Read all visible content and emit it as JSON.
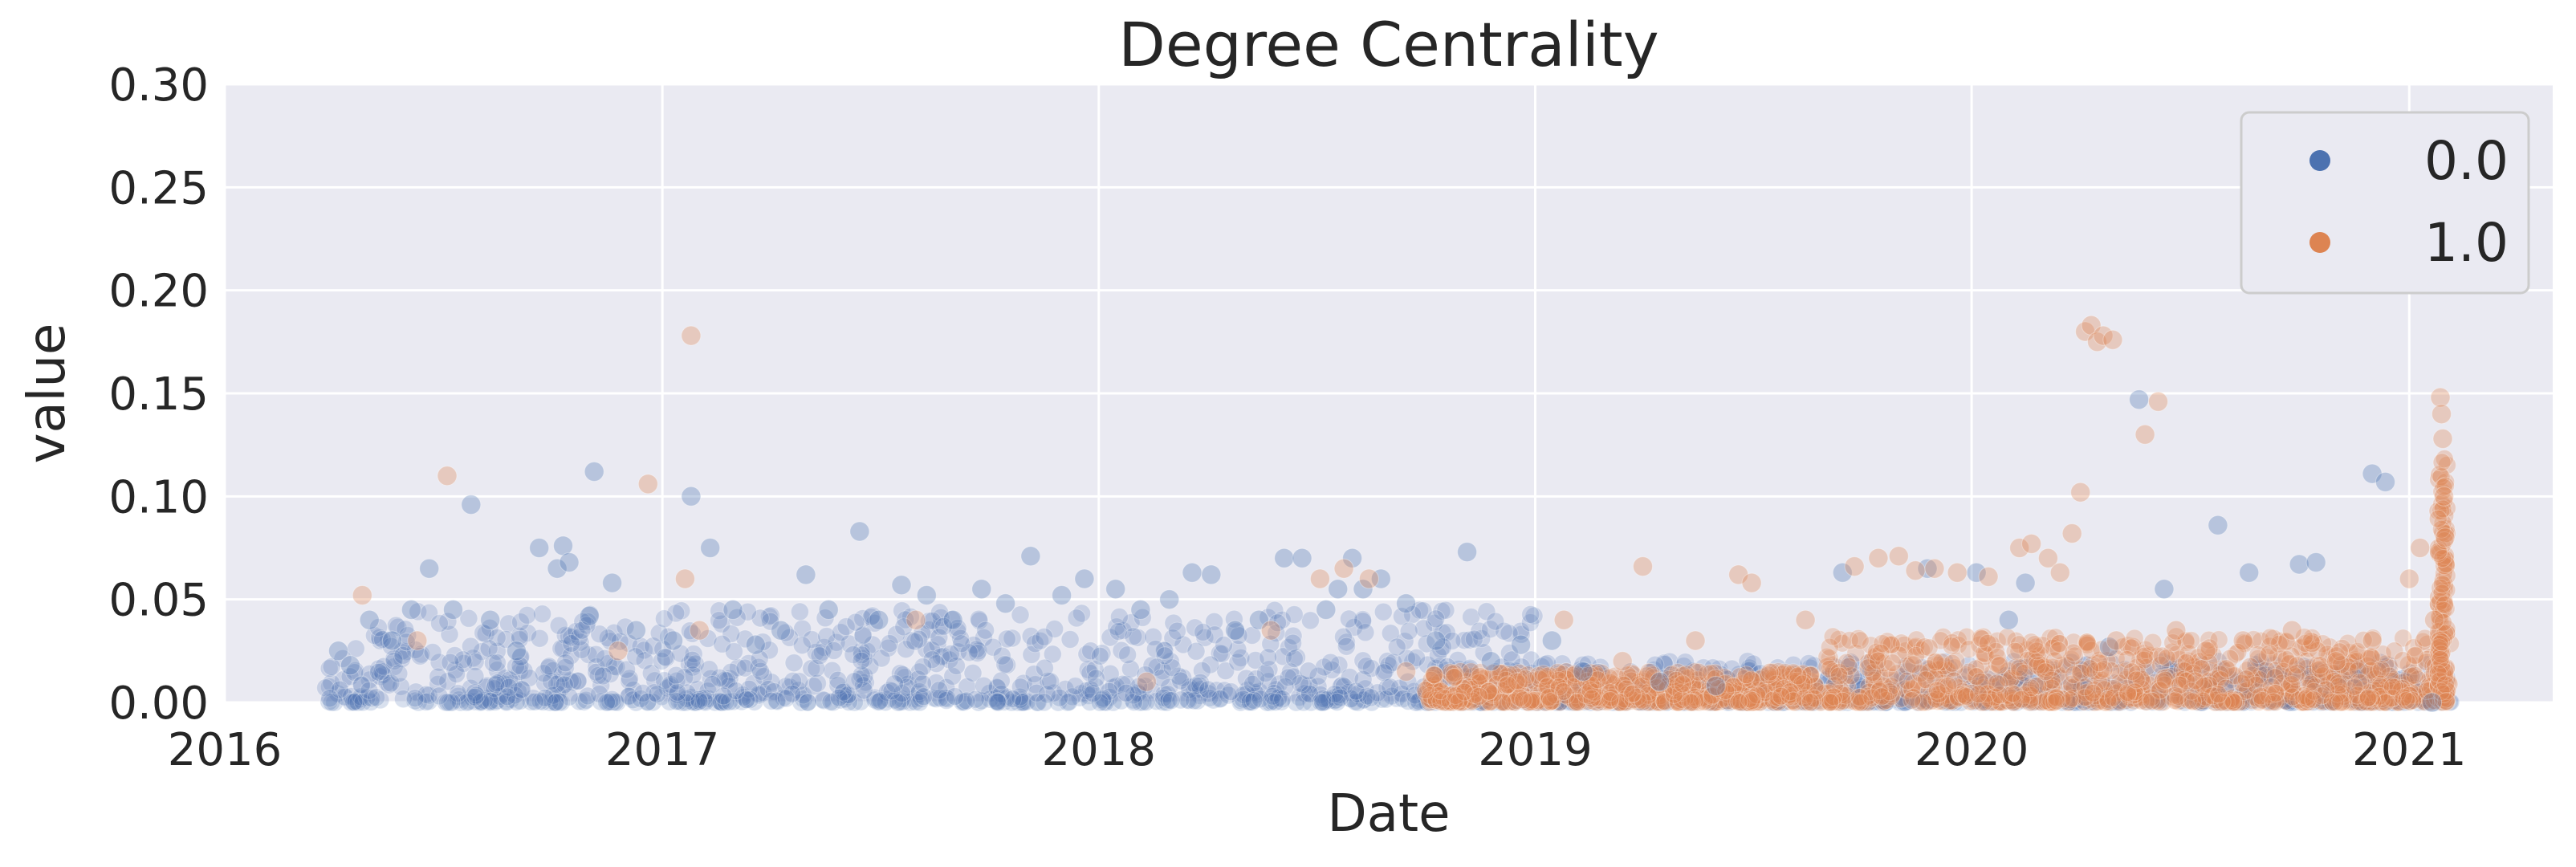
{
  "chart_data": {
    "type": "scatter",
    "title": "Degree Centrality",
    "xlabel": "Date",
    "ylabel": "value",
    "x_type": "date",
    "xlim": [
      "2016-01-01",
      "2021-05-01"
    ],
    "ylim": [
      0,
      0.3
    ],
    "x_ticks": [
      "2016",
      "2017",
      "2018",
      "2019",
      "2020",
      "2021"
    ],
    "y_ticks": [
      "0.00",
      "0.05",
      "0.10",
      "0.15",
      "0.20",
      "0.25",
      "0.30"
    ],
    "grid": true,
    "legend_position": "top-right",
    "series": [
      {
        "name": "0.0",
        "color": "#4c72b0",
        "points": [
          [
            "2016-04-05",
            0.025
          ],
          [
            "2016-04-15",
            0.018
          ],
          [
            "2016-05-01",
            0.04
          ],
          [
            "2016-05-20",
            0.03
          ],
          [
            "2016-06-05",
            0.045
          ],
          [
            "2016-06-20",
            0.065
          ],
          [
            "2016-07-10",
            0.045
          ],
          [
            "2016-07-25",
            0.096
          ],
          [
            "2016-08-10",
            0.04
          ],
          [
            "2016-09-01",
            0.025
          ],
          [
            "2016-09-20",
            0.075
          ],
          [
            "2016-10-05",
            0.065
          ],
          [
            "2016-10-10",
            0.076
          ],
          [
            "2016-10-15",
            0.068
          ],
          [
            "2016-11-01",
            0.042
          ],
          [
            "2016-11-05",
            0.112
          ],
          [
            "2016-11-20",
            0.058
          ],
          [
            "2016-12-10",
            0.035
          ],
          [
            "2017-01-10",
            0.03
          ],
          [
            "2017-01-25",
            0.1
          ],
          [
            "2017-02-10",
            0.075
          ],
          [
            "2017-03-01",
            0.045
          ],
          [
            "2017-03-20",
            0.028
          ],
          [
            "2017-04-10",
            0.035
          ],
          [
            "2017-05-01",
            0.062
          ],
          [
            "2017-05-20",
            0.045
          ],
          [
            "2017-06-15",
            0.083
          ],
          [
            "2017-07-01",
            0.04
          ],
          [
            "2017-07-20",
            0.057
          ],
          [
            "2017-08-10",
            0.052
          ],
          [
            "2017-09-01",
            0.04
          ],
          [
            "2017-09-25",
            0.055
          ],
          [
            "2017-10-15",
            0.048
          ],
          [
            "2017-11-05",
            0.071
          ],
          [
            "2017-12-01",
            0.052
          ],
          [
            "2017-12-20",
            0.06
          ],
          [
            "2018-01-15",
            0.055
          ],
          [
            "2018-02-05",
            0.045
          ],
          [
            "2018-03-01",
            0.05
          ],
          [
            "2018-03-20",
            0.063
          ],
          [
            "2018-04-05",
            0.062
          ],
          [
            "2018-04-25",
            0.035
          ],
          [
            "2018-05-15",
            0.04
          ],
          [
            "2018-06-05",
            0.07
          ],
          [
            "2018-06-20",
            0.07
          ],
          [
            "2018-07-10",
            0.045
          ],
          [
            "2018-07-20",
            0.055
          ],
          [
            "2018-08-01",
            0.07
          ],
          [
            "2018-08-10",
            0.055
          ],
          [
            "2018-08-25",
            0.06
          ],
          [
            "2018-09-15",
            0.048
          ],
          [
            "2018-10-10",
            0.03
          ],
          [
            "2018-11-05",
            0.073
          ],
          [
            "2018-11-25",
            0.02
          ],
          [
            "2018-12-20",
            0.028
          ],
          [
            "2019-01-15",
            0.03
          ],
          [
            "2019-02-10",
            0.015
          ],
          [
            "2019-04-15",
            0.01
          ],
          [
            "2019-06-01",
            0.008
          ],
          [
            "2019-09-15",
            0.063
          ],
          [
            "2019-11-25",
            0.065
          ],
          [
            "2020-01-05",
            0.063
          ],
          [
            "2020-02-01",
            0.04
          ],
          [
            "2020-02-15",
            0.058
          ],
          [
            "2020-04-25",
            0.027
          ],
          [
            "2020-05-20",
            0.147
          ],
          [
            "2020-06-10",
            0.055
          ],
          [
            "2020-07-25",
            0.086
          ],
          [
            "2020-08-20",
            0.063
          ],
          [
            "2020-10-01",
            0.067
          ],
          [
            "2020-10-15",
            0.068
          ],
          [
            "2020-12-01",
            0.111
          ],
          [
            "2020-12-12",
            0.107
          ],
          [
            "2021-01-20",
            0.0
          ]
        ]
      },
      {
        "name": "1.0",
        "color": "#dd8452",
        "points": [
          [
            "2016-04-25",
            0.052
          ],
          [
            "2016-06-10",
            0.03
          ],
          [
            "2016-07-05",
            0.11
          ],
          [
            "2016-11-25",
            0.025
          ],
          [
            "2016-12-20",
            0.106
          ],
          [
            "2017-01-20",
            0.06
          ],
          [
            "2017-01-25",
            0.178
          ],
          [
            "2017-02-01",
            0.035
          ],
          [
            "2017-08-01",
            0.04
          ],
          [
            "2018-02-10",
            0.01
          ],
          [
            "2018-05-25",
            0.035
          ],
          [
            "2018-07-05",
            0.06
          ],
          [
            "2018-07-25",
            0.065
          ],
          [
            "2018-08-15",
            0.06
          ],
          [
            "2018-09-15",
            0.015
          ],
          [
            "2019-01-25",
            0.04
          ],
          [
            "2019-03-15",
            0.02
          ],
          [
            "2019-04-01",
            0.066
          ],
          [
            "2019-05-15",
            0.03
          ],
          [
            "2019-06-20",
            0.062
          ],
          [
            "2019-07-01",
            0.058
          ],
          [
            "2019-08-15",
            0.04
          ],
          [
            "2019-09-25",
            0.066
          ],
          [
            "2019-10-15",
            0.07
          ],
          [
            "2019-11-01",
            0.071
          ],
          [
            "2019-11-15",
            0.064
          ],
          [
            "2019-12-01",
            0.065
          ],
          [
            "2019-12-20",
            0.063
          ],
          [
            "2020-01-15",
            0.061
          ],
          [
            "2020-02-10",
            0.075
          ],
          [
            "2020-02-20",
            0.077
          ],
          [
            "2020-03-05",
            0.07
          ],
          [
            "2020-03-15",
            0.063
          ],
          [
            "2020-03-25",
            0.082
          ],
          [
            "2020-04-01",
            0.102
          ],
          [
            "2020-04-05",
            0.18
          ],
          [
            "2020-04-10",
            0.183
          ],
          [
            "2020-04-15",
            0.175
          ],
          [
            "2020-04-20",
            0.178
          ],
          [
            "2020-04-28",
            0.176
          ],
          [
            "2020-05-01",
            0.03
          ],
          [
            "2020-05-25",
            0.13
          ],
          [
            "2020-06-05",
            0.146
          ],
          [
            "2020-06-20",
            0.035
          ],
          [
            "2020-07-15",
            0.025
          ],
          [
            "2020-08-15",
            0.03
          ],
          [
            "2020-09-25",
            0.035
          ],
          [
            "2020-11-01",
            0.02
          ],
          [
            "2020-12-01",
            0.03
          ],
          [
            "2021-01-01",
            0.06
          ],
          [
            "2021-01-10",
            0.075
          ],
          [
            "2021-01-22",
            0.04
          ],
          [
            "2021-01-27",
            0.148
          ],
          [
            "2021-01-28",
            0.14
          ],
          [
            "2021-01-29",
            0.128
          ],
          [
            "2021-01-30",
            0.1
          ],
          [
            "2021-01-31",
            0.08
          ]
        ]
      }
    ]
  }
}
